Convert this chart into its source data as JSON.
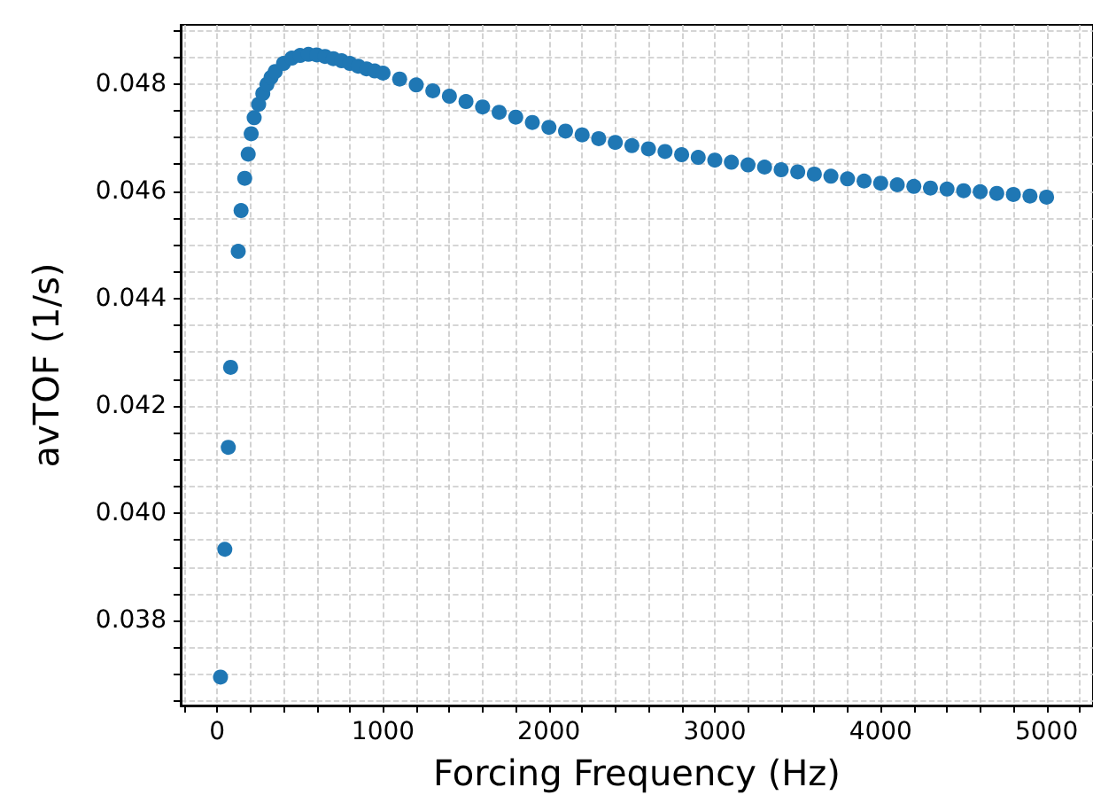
{
  "chart_data": {
    "type": "scatter",
    "xlabel": "Forcing Frequency (Hz)",
    "ylabel": "avTOF (1/s)",
    "x": [
      20,
      46,
      67,
      81,
      127,
      144,
      166,
      187,
      205,
      223,
      250,
      275,
      300,
      325,
      350,
      400,
      450,
      500,
      550,
      600,
      650,
      700,
      750,
      800,
      850,
      900,
      950,
      1000,
      1100,
      1200,
      1300,
      1400,
      1500,
      1600,
      1700,
      1800,
      1900,
      2000,
      2100,
      2200,
      2300,
      2400,
      2500,
      2600,
      2700,
      2800,
      2900,
      3000,
      3100,
      3200,
      3300,
      3400,
      3500,
      3600,
      3700,
      3800,
      3900,
      4000,
      4100,
      4200,
      4300,
      4400,
      4500,
      4600,
      4700,
      4800,
      4900,
      5000
    ],
    "series": [
      {
        "color": "#1f77b4",
        "values": [
          0.03695,
          0.03933,
          0.04123,
          0.04272,
          0.04488,
          0.04564,
          0.04624,
          0.04669,
          0.04707,
          0.04737,
          0.04762,
          0.04782,
          0.04799,
          0.04812,
          0.04823,
          0.04838,
          0.04848,
          0.04853,
          0.04855,
          0.04854,
          0.04851,
          0.04847,
          0.04843,
          0.04838,
          0.04833,
          0.04828,
          0.04824,
          0.0482,
          0.04809,
          0.04798,
          0.04787,
          0.04777,
          0.04767,
          0.04757,
          0.04747,
          0.04738,
          0.04728,
          0.04719,
          0.04712,
          0.04705,
          0.04698,
          0.04691,
          0.04685,
          0.04679,
          0.04674,
          0.04668,
          0.04663,
          0.04658,
          0.04654,
          0.04649,
          0.04645,
          0.0464,
          0.04636,
          0.04632,
          0.04628,
          0.04623,
          0.04619,
          0.04615,
          0.04612,
          0.04609,
          0.04606,
          0.04604,
          0.04601,
          0.04599,
          0.04596,
          0.04594,
          0.04591,
          0.04589
        ]
      }
    ],
    "xlim": [
      -220,
      5280
    ],
    "xticks": [
      {
        "value": -200,
        "label": null
      },
      0,
      {
        "value": 200,
        "label": null
      },
      {
        "value": 400,
        "label": null
      },
      {
        "value": 600,
        "label": null
      },
      {
        "value": 800,
        "label": null
      },
      1000,
      {
        "value": 1200,
        "label": null
      },
      {
        "value": 1400,
        "label": null
      },
      {
        "value": 1600,
        "label": null
      },
      {
        "value": 1800,
        "label": null
      },
      2000,
      {
        "value": 2200,
        "label": null
      },
      {
        "value": 2400,
        "label": null
      },
      {
        "value": 2600,
        "label": null
      },
      {
        "value": 2800,
        "label": null
      },
      3000,
      {
        "value": 3200,
        "label": null
      },
      {
        "value": 3400,
        "label": null
      },
      {
        "value": 3600,
        "label": null
      },
      {
        "value": 3800,
        "label": null
      },
      4000,
      {
        "value": 4200,
        "label": null
      },
      {
        "value": 4400,
        "label": null
      },
      {
        "value": 4600,
        "label": null
      },
      {
        "value": 4800,
        "label": null
      },
      5000,
      {
        "value": 5200,
        "label": null
      }
    ],
    "ylim": [
      0.03642,
      0.0491
    ],
    "yticks": [
      {
        "value": 0.0365,
        "label": null
      },
      0.038,
      {
        "value": 0.0375,
        "label": null
      },
      {
        "value": 0.0385,
        "label": null
      },
      {
        "value": 0.039,
        "label": null
      },
      {
        "value": 0.0395,
        "label": null
      },
      {
        "value": 0.04,
        "label": "0.040"
      },
      {
        "value": 0.0405,
        "label": null
      },
      {
        "value": 0.041,
        "label": null
      },
      {
        "value": 0.0415,
        "label": null
      },
      0.042,
      {
        "value": 0.0425,
        "label": null
      },
      {
        "value": 0.043,
        "label": null
      },
      {
        "value": 0.0435,
        "label": null
      },
      0.044,
      {
        "value": 0.0445,
        "label": null
      },
      {
        "value": 0.045,
        "label": null
      },
      {
        "value": 0.0455,
        "label": null
      },
      0.046,
      {
        "value": 0.0465,
        "label": null
      },
      {
        "value": 0.047,
        "label": null
      },
      {
        "value": 0.0475,
        "label": null
      },
      0.048,
      {
        "value": 0.0485,
        "label": null
      },
      {
        "value": 0.049,
        "label": null
      },
      {
        "value": 0.037,
        "label": null
      }
    ],
    "grid": true,
    "marker": "circle"
  }
}
